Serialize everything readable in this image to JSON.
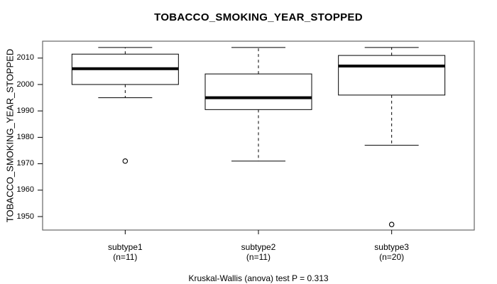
{
  "colors": {
    "background": "#ffffff",
    "frame": "#666666",
    "line": "#000000",
    "box_fill": "#ffffff"
  },
  "chart_data": {
    "type": "box",
    "title": "TOBACCO_SMOKING_YEAR_STOPPED",
    "ylabel": "TOBACCO_SMOKING_YEAR_STOPPED",
    "footnote": "Kruskal-Wallis (anova) test P = 0.313",
    "y_ticks": [
      1950,
      1960,
      1970,
      1980,
      1990,
      2000,
      2010
    ],
    "ylim": [
      1944.9,
      2016.4
    ],
    "grid": false,
    "legend": "none",
    "groups": [
      {
        "label": "subtype1",
        "sublabel": "(n=11)",
        "n": 11,
        "whisker_low": 1995,
        "q1": 2000,
        "median": 2006,
        "q3": 2011.5,
        "whisker_high": 2014,
        "outliers": [
          1971
        ]
      },
      {
        "label": "subtype2",
        "sublabel": "(n=11)",
        "n": 11,
        "whisker_low": 1971,
        "q1": 1990.5,
        "median": 1995,
        "q3": 2004,
        "whisker_high": 2014,
        "outliers": []
      },
      {
        "label": "subtype3",
        "sublabel": "(n=20)",
        "n": 20,
        "whisker_low": 1977,
        "q1": 1996,
        "median": 2007,
        "q3": 2011,
        "whisker_high": 2014,
        "outliers": [
          1947
        ]
      }
    ]
  }
}
